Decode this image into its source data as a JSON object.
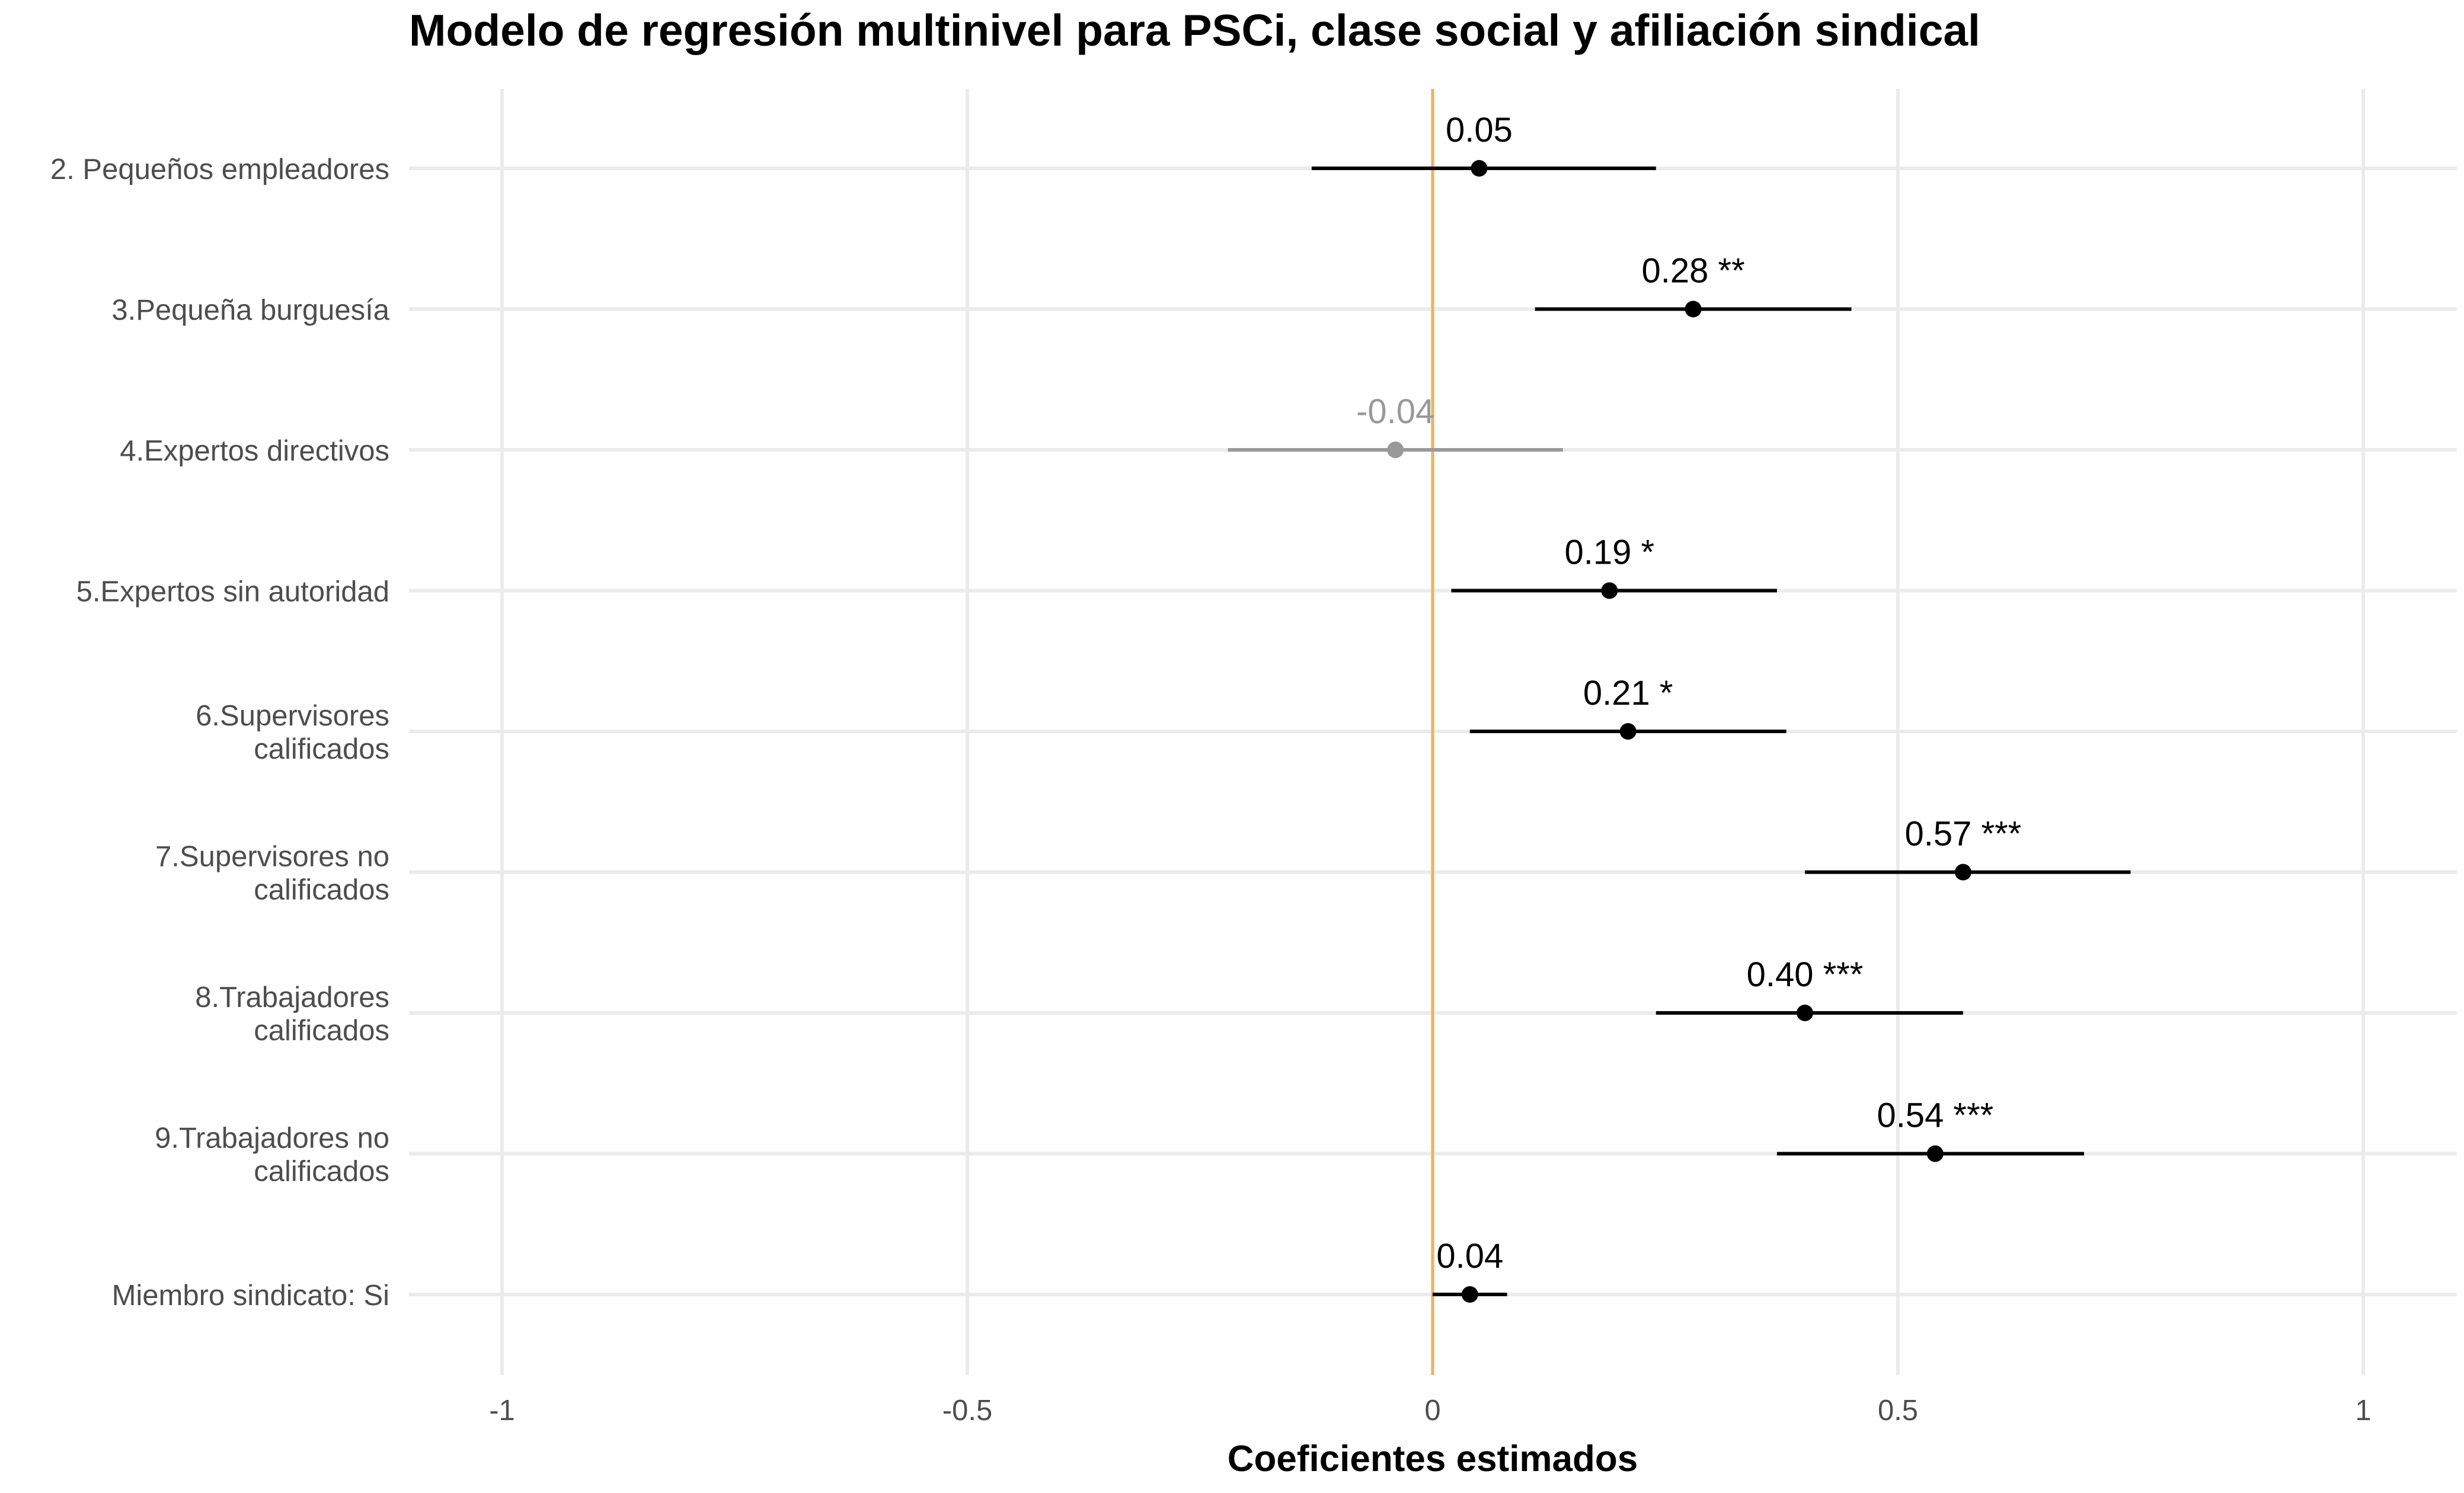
{
  "chart_data": {
    "type": "forest",
    "title": "Modelo de regresión multinivel para PSCi, clase social y afiliación sindical",
    "xlabel": "Coeficientes estimados",
    "ylabel": "",
    "xlim": [
      -1.1,
      1.1
    ],
    "x_ticks": [
      {
        "value": -1,
        "label": "-1"
      },
      {
        "value": -0.5,
        "label": "-0.5"
      },
      {
        "value": 0,
        "label": "0"
      },
      {
        "value": 0.5,
        "label": "0.5"
      },
      {
        "value": 1,
        "label": "1"
      }
    ],
    "reference_line": {
      "x": 0,
      "color": "#f0b35a"
    },
    "grid": true,
    "colors": {
      "significant": "#000000",
      "not_significant": "#999999",
      "grid": "#ebebeb"
    },
    "items": [
      {
        "label": [
          "2. Pequeños empleadores"
        ],
        "estimate": 0.05,
        "low": -0.13,
        "high": 0.24,
        "value_label": "0.05",
        "significant": true
      },
      {
        "label": [
          "3.Pequeña burguesía"
        ],
        "estimate": 0.28,
        "low": 0.11,
        "high": 0.45,
        "value_label": "0.28 **",
        "significant": true
      },
      {
        "label": [
          "4.Expertos directivos"
        ],
        "estimate": -0.04,
        "low": -0.22,
        "high": 0.14,
        "value_label": "-0.04",
        "significant": false
      },
      {
        "label": [
          "5.Expertos sin autoridad"
        ],
        "estimate": 0.19,
        "low": 0.02,
        "high": 0.37,
        "value_label": "0.19 *",
        "significant": true
      },
      {
        "label": [
          "6.Supervisores",
          "calificados"
        ],
        "estimate": 0.21,
        "low": 0.04,
        "high": 0.38,
        "value_label": "0.21 *",
        "significant": true
      },
      {
        "label": [
          "7.Supervisores no",
          "calificados"
        ],
        "estimate": 0.57,
        "low": 0.4,
        "high": 0.75,
        "value_label": "0.57 ***",
        "significant": true
      },
      {
        "label": [
          "8.Trabajadores",
          "calificados"
        ],
        "estimate": 0.4,
        "low": 0.24,
        "high": 0.57,
        "value_label": "0.40 ***",
        "significant": true
      },
      {
        "label": [
          "9.Trabajadores no",
          "calificados"
        ],
        "estimate": 0.54,
        "low": 0.37,
        "high": 0.7,
        "value_label": "0.54 ***",
        "significant": true
      },
      {
        "label": [
          "Miembro sindicato: Si"
        ],
        "estimate": 0.04,
        "low": 0.0,
        "high": 0.08,
        "value_label": "0.04",
        "significant": true
      }
    ]
  }
}
